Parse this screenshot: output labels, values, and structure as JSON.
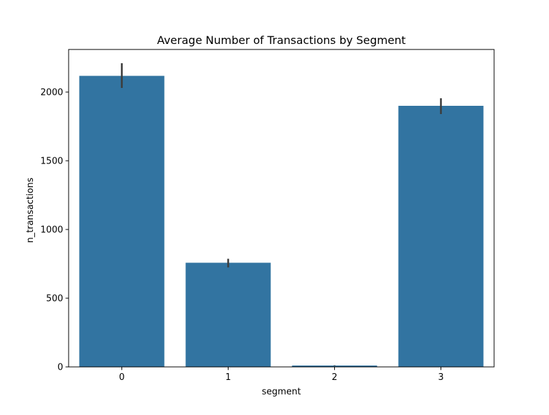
{
  "chart_data": {
    "type": "bar",
    "title": "Average Number of Transactions by Segment",
    "xlabel": "segment",
    "ylabel": "n_transactions",
    "categories": [
      "0",
      "1",
      "2",
      "3"
    ],
    "values": [
      2118,
      758,
      10,
      1900
    ],
    "error_bars": [
      {
        "low": 2030,
        "high": 2210
      },
      {
        "low": 724,
        "high": 787
      },
      {
        "low": 8,
        "high": 12
      },
      {
        "low": 1840,
        "high": 1955
      }
    ],
    "ylim": [
      0,
      2310
    ],
    "yticks": [
      0,
      500,
      1000,
      1500,
      2000
    ],
    "yticks_labels": [
      "0",
      "500",
      "1000",
      "1500",
      "2000"
    ],
    "bar_color": "#3274a1",
    "errorbar_color": "#3d3d3d",
    "grid": false,
    "legend": "none"
  }
}
